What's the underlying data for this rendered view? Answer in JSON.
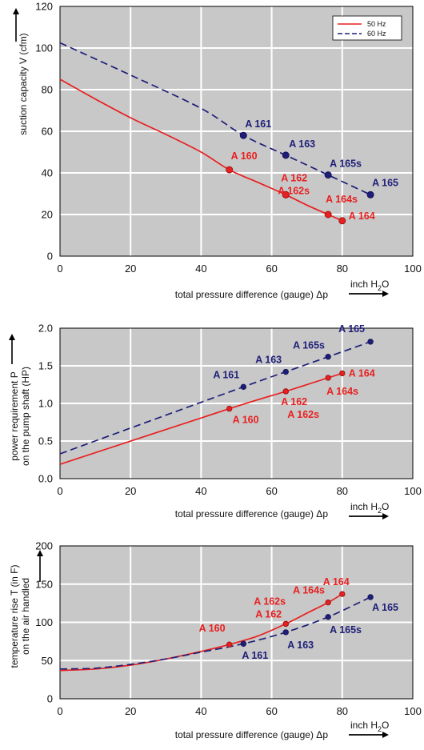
{
  "colors": {
    "plot_bg": "#c8c8c8",
    "grid": "#ffffff",
    "hz50": "#e82020",
    "hz60": "#1e1e78",
    "marker50": "#a01818",
    "marker60": "#14145a"
  },
  "chart_data": [
    {
      "type": "line",
      "ylabel": "suction capacity V (cfm)",
      "ylabel_lines": [
        "suction capacity V (cfm)"
      ],
      "xlabel": "total pressure difference (gauge)",
      "xsym": "Δp",
      "xunit": "inch H",
      "xunit_sub": "2",
      "xunit_tail": "O",
      "xlim": [
        0,
        100
      ],
      "ylim": [
        0,
        120
      ],
      "xticks": [
        0,
        20,
        40,
        60,
        80,
        100
      ],
      "yticks": [
        0,
        20,
        40,
        60,
        80,
        100,
        120
      ],
      "ytick_labels": [
        "0",
        "20",
        "40",
        "60",
        "80",
        "100",
        "120"
      ],
      "grid": true,
      "legend": {
        "position": "top-right",
        "entries": [
          "50 Hz",
          "60 Hz"
        ]
      },
      "series": [
        {
          "name": "50 Hz",
          "style": "solid",
          "x": [
            0,
            10,
            20,
            30,
            40,
            48,
            56,
            64,
            70,
            76,
            80
          ],
          "y": [
            85,
            75.5,
            66.5,
            58.5,
            50,
            41.5,
            35.5,
            29.5,
            24.5,
            20,
            17
          ]
        },
        {
          "name": "60 Hz",
          "style": "dashed",
          "x": [
            0,
            20,
            40,
            52,
            64,
            76,
            88
          ],
          "y": [
            102.5,
            87,
            71,
            58,
            48.5,
            39,
            29.5
          ]
        }
      ],
      "points": [
        {
          "label": "A 160",
          "x": 48,
          "y": 41.5,
          "s": 0,
          "dx": 2,
          "dy": -13
        },
        {
          "label": "A 162",
          "x": 64,
          "y": 29.5,
          "s": 0,
          "dx": -6,
          "dy": -17
        },
        {
          "label": "A 162s",
          "x": 64,
          "y": 29.5,
          "s": 0,
          "dx": -10,
          "dy": -1
        },
        {
          "label": "A 164s",
          "x": 76,
          "y": 20,
          "s": 0,
          "dx": -3,
          "dy": -15
        },
        {
          "label": "A 164",
          "x": 80,
          "y": 17,
          "s": 0,
          "dx": 8,
          "dy": -2
        },
        {
          "label": "A 161",
          "x": 52,
          "y": 58,
          "s": 1,
          "dx": 2,
          "dy": -10
        },
        {
          "label": "A 163",
          "x": 64,
          "y": 48.5,
          "s": 1,
          "dx": 4,
          "dy": -10
        },
        {
          "label": "A 165s",
          "x": 76,
          "y": 39,
          "s": 1,
          "dx": 2,
          "dy": -10
        },
        {
          "label": "A 165",
          "x": 88,
          "y": 29.5,
          "s": 1,
          "dx": 2,
          "dy": -11
        }
      ]
    },
    {
      "type": "line",
      "ylabel": "power requirement P on the pump shaft (HP)",
      "ylabel_lines": [
        "power requirement P",
        "on the pump shaft (HP)"
      ],
      "xlabel": "total pressure difference (gauge)",
      "xsym": "Δp",
      "xunit": "inch H",
      "xunit_sub": "2",
      "xunit_tail": "O",
      "xlim": [
        0,
        100
      ],
      "ylim": [
        0,
        2.0
      ],
      "xticks": [
        0,
        20,
        40,
        60,
        80,
        100
      ],
      "yticks": [
        0,
        0.5,
        1.0,
        1.5,
        2.0
      ],
      "ytick_labels": [
        "0.0",
        "0.5",
        "1.0",
        "1.5",
        "2.0"
      ],
      "grid": true,
      "series": [
        {
          "name": "50 Hz",
          "style": "solid",
          "x": [
            0,
            48,
            64,
            76,
            80
          ],
          "y": [
            0.19,
            0.93,
            1.16,
            1.34,
            1.4
          ]
        },
        {
          "name": "60 Hz",
          "style": "dashed",
          "x": [
            0,
            52,
            64,
            76,
            88
          ],
          "y": [
            0.33,
            1.22,
            1.42,
            1.62,
            1.82
          ]
        }
      ],
      "points": [
        {
          "label": "A 160",
          "x": 48,
          "y": 0.93,
          "s": 0,
          "dx": 4,
          "dy": 18
        },
        {
          "label": "A 162",
          "x": 64,
          "y": 1.16,
          "s": 0,
          "dx": -6,
          "dy": 17
        },
        {
          "label": "A 162s",
          "x": 64,
          "y": 1.16,
          "s": 0,
          "dx": 2,
          "dy": 33
        },
        {
          "label": "A 164s",
          "x": 76,
          "y": 1.34,
          "s": 0,
          "dx": -2,
          "dy": 21
        },
        {
          "label": "A 164",
          "x": 80,
          "y": 1.4,
          "s": 0,
          "dx": 8,
          "dy": 4
        },
        {
          "label": "A 161",
          "x": 52,
          "y": 1.22,
          "s": 1,
          "dx": -38,
          "dy": -11
        },
        {
          "label": "A 163",
          "x": 64,
          "y": 1.42,
          "s": 1,
          "dx": -38,
          "dy": -11
        },
        {
          "label": "A 165s",
          "x": 76,
          "y": 1.62,
          "s": 1,
          "dx": -44,
          "dy": -10
        },
        {
          "label": "A 165",
          "x": 88,
          "y": 1.82,
          "s": 1,
          "dx": -40,
          "dy": -12
        }
      ]
    },
    {
      "type": "line",
      "ylabel": "temperature rise T (in F) on the air handled",
      "ylabel_lines": [
        "temperature rise     T   (in F)",
        "on the air handled"
      ],
      "xlabel": "total pressure difference (gauge)",
      "xsym": "Δp",
      "xunit": "inch H",
      "xunit_sub": "2",
      "xunit_tail": "O",
      "xlim": [
        0,
        100
      ],
      "ylim": [
        0,
        200
      ],
      "xticks": [
        0,
        20,
        40,
        60,
        80,
        100
      ],
      "yticks": [
        0,
        50,
        100,
        150,
        200
      ],
      "ytick_labels": [
        "0",
        "50",
        "100",
        "150",
        "200"
      ],
      "grid": true,
      "series": [
        {
          "name": "50 Hz",
          "style": "solid",
          "x": [
            0,
            10,
            20,
            30,
            40,
            48,
            56,
            64,
            70,
            76,
            80
          ],
          "y": [
            37,
            39,
            44,
            52,
            62,
            71,
            82,
            98,
            112,
            126,
            137
          ]
        },
        {
          "name": "60 Hz",
          "style": "dashed",
          "x": [
            0,
            10,
            20,
            30,
            40,
            52,
            64,
            76,
            88
          ],
          "y": [
            39,
            40,
            45,
            52,
            61,
            72,
            87,
            107,
            133
          ]
        }
      ],
      "points": [
        {
          "label": "A 160",
          "x": 48,
          "y": 71,
          "s": 0,
          "dx": -38,
          "dy": -16
        },
        {
          "label": "A 162",
          "x": 64,
          "y": 98,
          "s": 0,
          "dx": -38,
          "dy": -8
        },
        {
          "label": "A 162s",
          "x": 64,
          "y": 98,
          "s": 0,
          "dx": -40,
          "dy": -24
        },
        {
          "label": "A 164s",
          "x": 76,
          "y": 126,
          "s": 0,
          "dx": -44,
          "dy": -11
        },
        {
          "label": "A 164",
          "x": 80,
          "y": 137,
          "s": 0,
          "dx": -24,
          "dy": -11
        },
        {
          "label": "A 161",
          "x": 52,
          "y": 72,
          "s": 1,
          "dx": -2,
          "dy": 19
        },
        {
          "label": "A 163",
          "x": 64,
          "y": 87,
          "s": 1,
          "dx": 2,
          "dy": 20
        },
        {
          "label": "A 165s",
          "x": 76,
          "y": 107,
          "s": 1,
          "dx": 2,
          "dy": 20
        },
        {
          "label": "A 165",
          "x": 88,
          "y": 133,
          "s": 1,
          "dx": 2,
          "dy": 17
        }
      ]
    }
  ]
}
